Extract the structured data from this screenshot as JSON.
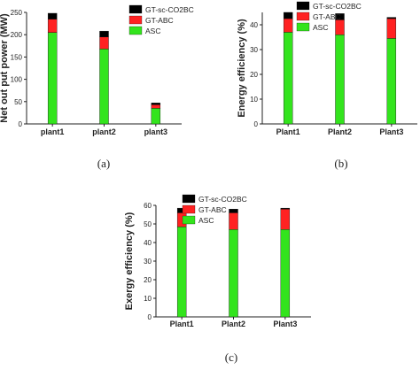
{
  "colors": {
    "ASC": "#33e41d",
    "GT-ABC": "#ff2222",
    "GT-sc-CO2BC": "#000000"
  },
  "chart_data": [
    {
      "type": "bar",
      "stacked": true,
      "panel": "(a)",
      "ylabel": "Net out put power (MW)",
      "xlabel": "",
      "ylim": [
        0,
        250
      ],
      "yticks": [
        0,
        50,
        100,
        150,
        200,
        250
      ],
      "categories": [
        "plant1",
        "plant2",
        "plant3"
      ],
      "series": [
        {
          "name": "ASC",
          "values": [
            205,
            168,
            35
          ]
        },
        {
          "name": "GT-ABC",
          "values": [
            30,
            27,
            8
          ]
        },
        {
          "name": "GT-sc-CO2BC",
          "values": [
            13,
            13,
            4
          ]
        }
      ],
      "legend_position": "top-right"
    },
    {
      "type": "bar",
      "stacked": true,
      "panel": "(b)",
      "ylabel": "Energy efficiency (%)",
      "xlabel": "",
      "ylim": [
        0,
        45
      ],
      "yticks": [
        0,
        10,
        20,
        30,
        40
      ],
      "categories": [
        "Plant1",
        "Plant2",
        "Plant3"
      ],
      "series": [
        {
          "name": "ASC",
          "values": [
            37,
            36,
            34.5
          ]
        },
        {
          "name": "GT-ABC",
          "values": [
            5.5,
            6,
            8
          ]
        },
        {
          "name": "GT-sc-CO2BC",
          "values": [
            2.5,
            2.5,
            0.5
          ]
        }
      ],
      "legend_position": "top-right"
    },
    {
      "type": "bar",
      "stacked": true,
      "panel": "(c)",
      "ylabel": "Exergy efficiency (%)",
      "xlabel": "",
      "ylim": [
        0,
        60
      ],
      "yticks": [
        0,
        10,
        20,
        30,
        40,
        50,
        60
      ],
      "categories": [
        "Plant1",
        "Plant2",
        "Plant3"
      ],
      "series": [
        {
          "name": "ASC",
          "values": [
            48.5,
            47,
            47
          ]
        },
        {
          "name": "GT-ABC",
          "values": [
            7.5,
            9,
            11
          ]
        },
        {
          "name": "GT-sc-CO2BC",
          "values": [
            2.5,
            2,
            0.5
          ]
        }
      ],
      "legend_position": "top-left"
    }
  ]
}
